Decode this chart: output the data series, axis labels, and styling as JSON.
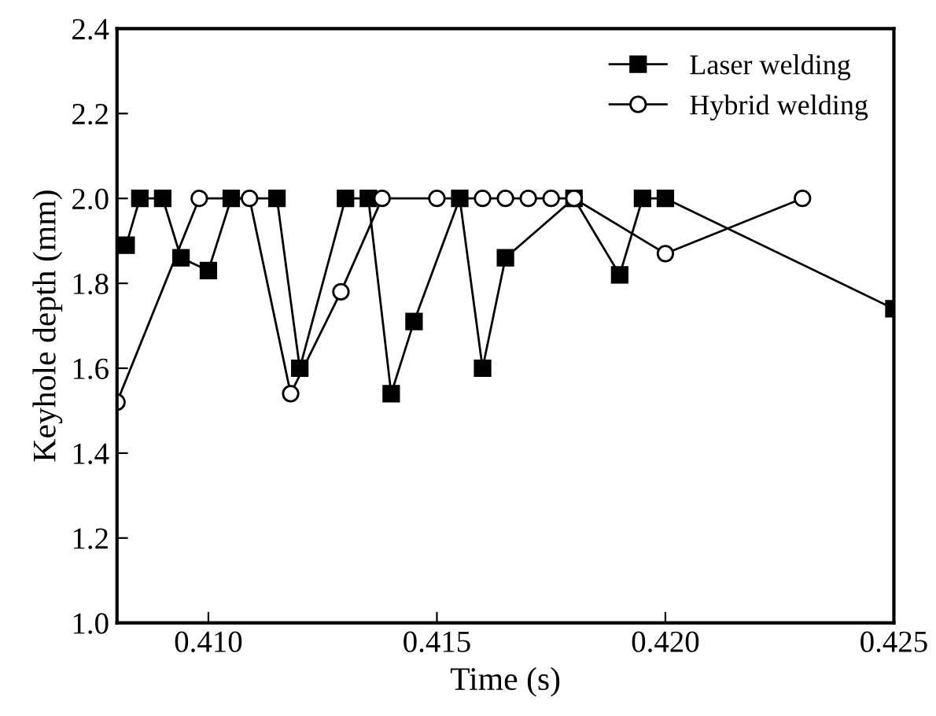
{
  "chart_data": {
    "type": "line",
    "xlabel": "Time (s)",
    "ylabel": "Keyhole depth (mm)",
    "xlim": [
      0.408,
      0.425
    ],
    "xticks": [
      {
        "value": 0.41,
        "label": "0.410"
      },
      {
        "value": 0.415,
        "label": "0.415"
      },
      {
        "value": 0.42,
        "label": "0.420"
      },
      {
        "value": 0.425,
        "label": "0.425"
      }
    ],
    "ylim": [
      1.0,
      2.4
    ],
    "yticks": [
      {
        "value": 1.0,
        "label": "1.0"
      },
      {
        "value": 1.2,
        "label": "1.2"
      },
      {
        "value": 1.4,
        "label": "1.4"
      },
      {
        "value": 1.6,
        "label": "1.6"
      },
      {
        "value": 1.8,
        "label": "1.8"
      },
      {
        "value": 2.0,
        "label": "2.0"
      },
      {
        "value": 2.2,
        "label": "2.2"
      },
      {
        "value": 2.4,
        "label": "2.4"
      }
    ],
    "legend": "top right",
    "grid": false,
    "series": [
      {
        "name": "Laser welding",
        "color": "#000000",
        "marker": "square",
        "x": [
          0.4082,
          0.4085,
          0.409,
          0.4094,
          0.41,
          0.4105,
          0.4115,
          0.412,
          0.413,
          0.4135,
          0.414,
          0.4145,
          0.4155,
          0.416,
          0.4165,
          0.418,
          0.419,
          0.4195,
          0.42,
          0.425
        ],
        "values": [
          1.89,
          2.0,
          2.0,
          1.86,
          1.83,
          2.0,
          2.0,
          1.6,
          2.0,
          2.0,
          1.54,
          1.71,
          2.0,
          1.6,
          1.86,
          2.0,
          1.82,
          2.0,
          2.0,
          1.74
        ]
      },
      {
        "name": "Hybrid welding",
        "color": "#000000",
        "marker": "circle",
        "x": [
          0.408,
          0.4098,
          0.4109,
          0.4118,
          0.4129,
          0.4138,
          0.415,
          0.416,
          0.4165,
          0.417,
          0.4175,
          0.418,
          0.42,
          0.423
        ],
        "values": [
          1.52,
          2.0,
          2.0,
          1.54,
          1.78,
          2.0,
          2.0,
          2.0,
          2.0,
          2.0,
          2.0,
          2.0,
          1.87,
          2.0
        ]
      }
    ]
  }
}
